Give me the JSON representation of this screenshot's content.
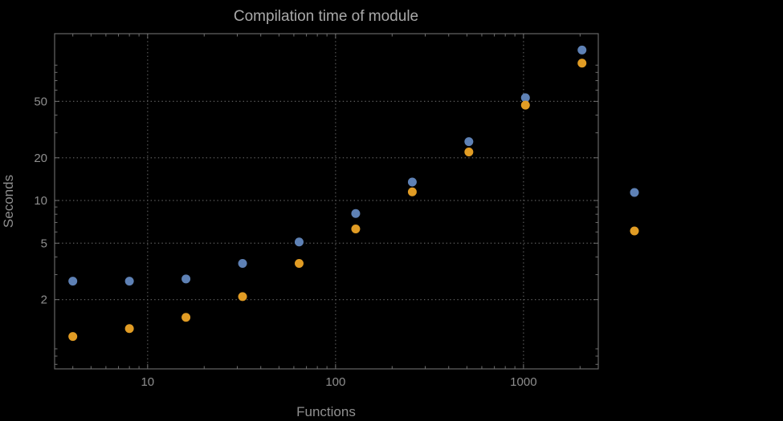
{
  "colors": {
    "background": "#000000",
    "frame": "#6f6f6f",
    "grid": "#5c5c5c",
    "title_text": "#a9a9a9",
    "label_text": "#8f8f8f",
    "tick_text": "#8e8e8e",
    "series_blue": "#5e81b5",
    "series_orange": "#e19c24"
  },
  "chart_data": {
    "type": "scatter",
    "title": "Compilation time of module",
    "xlabel": "Functions",
    "ylabel": "Seconds",
    "x_scale": "log",
    "y_scale": "log",
    "x_range": [
      3.2,
      2500
    ],
    "y_range": [
      0.65,
      150
    ],
    "x_ticks": [
      10,
      100,
      1000
    ],
    "x_tick_labels": [
      "10",
      "100",
      "1000"
    ],
    "y_ticks": [
      2,
      5,
      10,
      20,
      50
    ],
    "y_tick_labels": [
      "2",
      "5",
      "10",
      "20",
      "50"
    ],
    "grid": true,
    "x": [
      4,
      8,
      16,
      32,
      64,
      128,
      256,
      512,
      1024,
      2048
    ],
    "series": [
      {
        "name": "series-blue",
        "color": "#5e81b5",
        "values": [
          2.7,
          2.7,
          2.8,
          3.6,
          5.1,
          8.1,
          13.5,
          26,
          53,
          115
        ]
      },
      {
        "name": "series-orange",
        "color": "#e19c24",
        "values": [
          1.1,
          1.25,
          1.5,
          2.1,
          3.6,
          6.3,
          11.5,
          22,
          47,
          93
        ]
      }
    ],
    "legend": {
      "position": "outside-right",
      "markers": [
        {
          "name": "legend-marker-blue",
          "color": "#5e81b5"
        },
        {
          "name": "legend-marker-orange",
          "color": "#e19c24"
        }
      ]
    }
  }
}
